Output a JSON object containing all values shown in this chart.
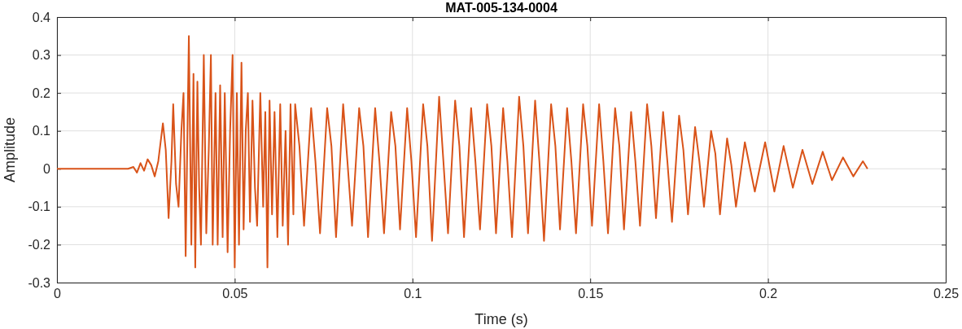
{
  "chart_data": {
    "type": "line",
    "title": "MAT-005-134-0004",
    "xlabel": "Time (s)",
    "ylabel": "Amplitude",
    "xlim": [
      0,
      0.25
    ],
    "xticks": [
      0,
      0.05,
      0.1,
      0.15,
      0.2,
      0.25
    ],
    "ylim": [
      -0.3,
      0.4
    ],
    "yticks": [
      -0.3,
      -0.2,
      -0.1,
      0,
      0.1,
      0.2,
      0.3,
      0.4
    ],
    "grid": true,
    "series": [
      {
        "color": "#d95319",
        "x": [
          0,
          0.01,
          0.02,
          0.0215,
          0.0225,
          0.0235,
          0.0245,
          0.0255,
          0.0265,
          0.0275,
          0.0285,
          0.0298,
          0.0306,
          0.0314,
          0.0322,
          0.0327,
          0.0335,
          0.0342,
          0.035,
          0.0356,
          0.0362,
          0.0371,
          0.0378,
          0.0384,
          0.0389,
          0.0395,
          0.04,
          0.0405,
          0.0413,
          0.042,
          0.0427,
          0.0433,
          0.0438,
          0.0446,
          0.0452,
          0.0459,
          0.0466,
          0.0472,
          0.048,
          0.0487,
          0.0494,
          0.05,
          0.0506,
          0.0512,
          0.0519,
          0.0525,
          0.0531,
          0.0537,
          0.0543,
          0.055,
          0.0557,
          0.0563,
          0.0572,
          0.058,
          0.0586,
          0.0592,
          0.0598,
          0.0605,
          0.0612,
          0.062,
          0.0628,
          0.0635,
          0.0643,
          0.065,
          0.0657,
          0.0665,
          0.067,
          0.0682,
          0.0695,
          0.0715,
          0.0727,
          0.074,
          0.076,
          0.0772,
          0.0785,
          0.0805,
          0.0817,
          0.083,
          0.085,
          0.0862,
          0.0875,
          0.0895,
          0.0907,
          0.092,
          0.094,
          0.0952,
          0.0965,
          0.0985,
          0.0997,
          0.101,
          0.103,
          0.1042,
          0.1055,
          0.1075,
          0.1087,
          0.11,
          0.112,
          0.1132,
          0.1145,
          0.1165,
          0.1177,
          0.119,
          0.121,
          0.1222,
          0.1235,
          0.1255,
          0.1267,
          0.128,
          0.13,
          0.1312,
          0.1325,
          0.1345,
          0.1357,
          0.137,
          0.139,
          0.1402,
          0.1415,
          0.1435,
          0.1447,
          0.146,
          0.148,
          0.1492,
          0.1505,
          0.1525,
          0.1537,
          0.155,
          0.157,
          0.1582,
          0.1595,
          0.1615,
          0.1627,
          0.164,
          0.166,
          0.1672,
          0.1685,
          0.1705,
          0.1717,
          0.173,
          0.175,
          0.1762,
          0.1775,
          0.1795,
          0.1807,
          0.182,
          0.184,
          0.1852,
          0.1865,
          0.1885,
          0.1897,
          0.191,
          0.1935,
          0.1963,
          0.1992,
          0.2018,
          0.2044,
          0.207,
          0.2097,
          0.2125,
          0.2154,
          0.218,
          0.2211,
          0.224,
          0.2267,
          0.228
        ],
        "values": [
          0,
          0,
          0,
          0.005,
          -0.01,
          0.015,
          -0.005,
          0.025,
          0.01,
          -0.02,
          0.02,
          0.12,
          0.05,
          -0.13,
          0.02,
          0.17,
          -0.04,
          -0.1,
          0.1,
          0.2,
          -0.23,
          0.35,
          -0.2,
          0.25,
          -0.26,
          0.23,
          -0.05,
          -0.2,
          0.3,
          -0.17,
          0.05,
          0.3,
          -0.2,
          0.2,
          -0.2,
          0.22,
          -0.18,
          0.2,
          -0.22,
          0.1,
          0.3,
          -0.26,
          0.2,
          -0.2,
          0.28,
          -0.16,
          0.1,
          0.2,
          -0.14,
          0.18,
          -0.05,
          -0.15,
          0.2,
          -0.1,
          0.15,
          -0.26,
          0.18,
          -0.12,
          0.15,
          -0.18,
          0.17,
          -0.15,
          0.1,
          -0.2,
          0.17,
          -0.12,
          0.17,
          0.06,
          -0.15,
          0.16,
          0.02,
          -0.17,
          0.16,
          0.06,
          -0.18,
          0.17,
          0.02,
          -0.15,
          0.16,
          0.06,
          -0.18,
          0.16,
          0.02,
          -0.17,
          0.15,
          0.06,
          -0.16,
          0.16,
          0.02,
          -0.18,
          0.17,
          0.06,
          -0.19,
          0.19,
          0.02,
          -0.17,
          0.18,
          0.06,
          -0.18,
          0.16,
          0.02,
          -0.16,
          0.17,
          0.06,
          -0.17,
          0.16,
          0.02,
          -0.18,
          0.19,
          0.06,
          -0.17,
          0.18,
          0.02,
          -0.19,
          0.17,
          0.06,
          -0.16,
          0.16,
          0.02,
          -0.17,
          0.17,
          0.06,
          -0.15,
          0.17,
          0.02,
          -0.17,
          0.16,
          0.06,
          -0.16,
          0.15,
          0.02,
          -0.15,
          0.17,
          0.06,
          -0.13,
          0.15,
          0.02,
          -0.14,
          0.14,
          0.05,
          -0.12,
          0.11,
          0.02,
          -0.1,
          0.1,
          0.04,
          -0.12,
          0.08,
          0.01,
          -0.1,
          0.07,
          -0.06,
          0.07,
          -0.06,
          0.06,
          -0.05,
          0.05,
          -0.04,
          0.045,
          -0.03,
          0.03,
          -0.02,
          0.02,
          0
        ]
      }
    ]
  }
}
